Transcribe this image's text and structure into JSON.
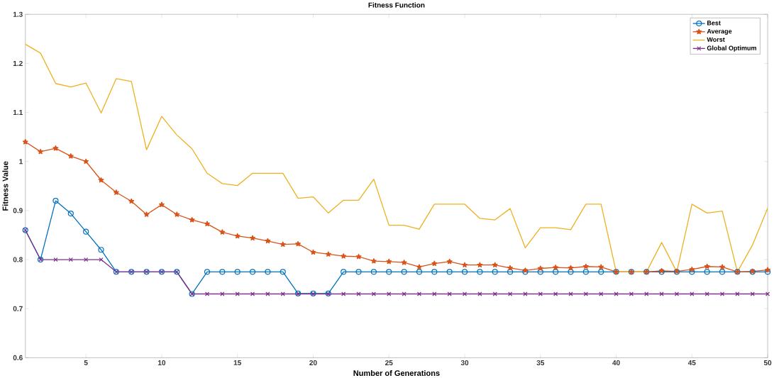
{
  "chart_data": {
    "type": "line",
    "title": "Fitness Function",
    "xlabel": "Number of Generations",
    "ylabel": "Fitness Value",
    "x": [
      1,
      2,
      3,
      4,
      5,
      6,
      7,
      8,
      9,
      10,
      11,
      12,
      13,
      14,
      15,
      16,
      17,
      18,
      19,
      20,
      21,
      22,
      23,
      24,
      25,
      26,
      27,
      28,
      29,
      30,
      31,
      32,
      33,
      34,
      35,
      36,
      37,
      38,
      39,
      40,
      41,
      42,
      43,
      44,
      45,
      46,
      47,
      48,
      49,
      50
    ],
    "xlim": [
      1,
      50
    ],
    "xticks": [
      5,
      10,
      15,
      20,
      25,
      30,
      35,
      40,
      45,
      50
    ],
    "ylim": [
      0.6,
      1.3
    ],
    "yticks": [
      {
        "value": 0.6,
        "label": "0.6"
      },
      {
        "value": 0.7,
        "label": "0.7"
      },
      {
        "value": 0.8,
        "label": "0.8"
      },
      {
        "value": 0.9,
        "label": "0.9"
      },
      {
        "value": 1.0,
        "label": "1"
      },
      {
        "value": 1.1,
        "label": "1.1"
      },
      {
        "value": 1.2,
        "label": "1.2"
      },
      {
        "value": 1.3,
        "label": "1.3"
      }
    ],
    "legend": "top right",
    "series": [
      {
        "name": "Best",
        "color": "#0072bd",
        "marker": "circle",
        "values": [
          0.86,
          0.8,
          0.92,
          0.894,
          0.857,
          0.82,
          0.775,
          0.775,
          0.775,
          0.775,
          0.775,
          0.73,
          0.775,
          0.775,
          0.775,
          0.775,
          0.775,
          0.775,
          0.731,
          0.731,
          0.731,
          0.775,
          0.775,
          0.775,
          0.775,
          0.775,
          0.775,
          0.775,
          0.775,
          0.775,
          0.775,
          0.775,
          0.775,
          0.775,
          0.775,
          0.775,
          0.775,
          0.775,
          0.775,
          0.775,
          0.775,
          0.775,
          0.775,
          0.775,
          0.775,
          0.775,
          0.775,
          0.775,
          0.775,
          0.775
        ]
      },
      {
        "name": "Average",
        "color": "#d95319",
        "marker": "star",
        "values": [
          1.04,
          1.02,
          1.027,
          1.011,
          1.0,
          0.962,
          0.937,
          0.919,
          0.892,
          0.912,
          0.892,
          0.881,
          0.873,
          0.856,
          0.848,
          0.844,
          0.838,
          0.831,
          0.832,
          0.815,
          0.811,
          0.807,
          0.806,
          0.797,
          0.796,
          0.794,
          0.785,
          0.792,
          0.796,
          0.789,
          0.789,
          0.789,
          0.783,
          0.778,
          0.782,
          0.784,
          0.783,
          0.786,
          0.785,
          0.775,
          0.775,
          0.775,
          0.777,
          0.776,
          0.78,
          0.786,
          0.785,
          0.775,
          0.776,
          0.779
        ]
      },
      {
        "name": "Worst",
        "color": "#edb120",
        "marker": "none",
        "values": [
          1.239,
          1.221,
          1.159,
          1.152,
          1.16,
          1.099,
          1.169,
          1.163,
          1.024,
          1.092,
          1.054,
          1.026,
          0.976,
          0.955,
          0.951,
          0.976,
          0.976,
          0.976,
          0.925,
          0.928,
          0.895,
          0.921,
          0.921,
          0.964,
          0.87,
          0.87,
          0.862,
          0.913,
          0.913,
          0.913,
          0.884,
          0.881,
          0.904,
          0.824,
          0.865,
          0.865,
          0.861,
          0.913,
          0.913,
          0.775,
          0.775,
          0.775,
          0.835,
          0.775,
          0.913,
          0.895,
          0.899,
          0.775,
          0.83,
          0.905
        ]
      },
      {
        "name": "Global Optimum",
        "color": "#7e2f8e",
        "marker": "cross",
        "values": [
          0.86,
          0.8,
          0.8,
          0.8,
          0.8,
          0.8,
          0.775,
          0.775,
          0.775,
          0.775,
          0.775,
          0.73,
          0.73,
          0.73,
          0.73,
          0.73,
          0.73,
          0.73,
          0.73,
          0.73,
          0.73,
          0.73,
          0.73,
          0.73,
          0.73,
          0.73,
          0.73,
          0.73,
          0.73,
          0.73,
          0.73,
          0.73,
          0.73,
          0.73,
          0.73,
          0.73,
          0.73,
          0.73,
          0.73,
          0.73,
          0.73,
          0.73,
          0.73,
          0.73,
          0.73,
          0.73,
          0.73,
          0.73,
          0.73,
          0.73
        ]
      }
    ]
  }
}
